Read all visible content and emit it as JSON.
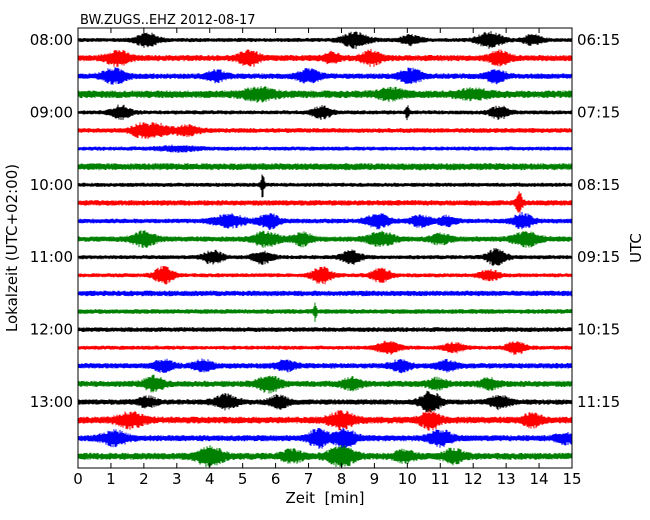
{
  "chart_data": {
    "type": "line",
    "title": "BW.ZUGS..EHZ 2012-08-17",
    "xlabel": "Zeit  [min]",
    "ylabel_left": "Lokalzeit (UTC+02:00)",
    "ylabel_right": "UTC",
    "xlim": [
      0,
      15
    ],
    "x_ticks": [
      "0",
      "1",
      "2",
      "3",
      "4",
      "5",
      "6",
      "7",
      "8",
      "9",
      "10",
      "11",
      "12",
      "13",
      "14",
      "15"
    ],
    "left_ticks": [
      "08:00",
      "09:00",
      "10:00",
      "11:00",
      "12:00",
      "13:00"
    ],
    "right_ticks": [
      "06:15",
      "07:15",
      "08:15",
      "09:15",
      "10:15",
      "11:15"
    ],
    "trace_colors": [
      "#000000",
      "#ff0000",
      "#0000ff",
      "#008000"
    ],
    "traces": [
      {
        "base": 0.3,
        "events": [
          [
            2.1,
            0.9,
            0.35
          ],
          [
            8.4,
            1.0,
            0.4
          ],
          [
            10.1,
            0.6,
            0.3
          ],
          [
            12.5,
            1.0,
            0.4
          ],
          [
            13.8,
            0.6,
            0.3
          ]
        ]
      },
      {
        "base": 0.45,
        "events": [
          [
            1.2,
            0.9,
            0.35
          ],
          [
            5.2,
            1.0,
            0.3
          ],
          [
            7.7,
            0.6,
            0.25
          ],
          [
            8.9,
            0.9,
            0.3
          ],
          [
            12.8,
            0.9,
            0.3
          ]
        ]
      },
      {
        "base": 0.4,
        "events": [
          [
            1.1,
            0.9,
            0.4
          ],
          [
            4.2,
            0.7,
            0.3
          ],
          [
            7.0,
            0.8,
            0.35
          ],
          [
            10.1,
            0.9,
            0.35
          ],
          [
            12.7,
            0.8,
            0.3
          ]
        ]
      },
      {
        "base": 0.55,
        "events": [
          [
            5.5,
            0.7,
            0.5
          ],
          [
            9.5,
            0.6,
            0.4
          ],
          [
            12.0,
            0.5,
            0.5
          ]
        ]
      },
      {
        "base": 0.3,
        "events": [
          [
            1.3,
            0.9,
            0.3
          ],
          [
            7.4,
            0.8,
            0.3
          ],
          [
            10.0,
            1.0,
            0.05
          ],
          [
            12.8,
            0.8,
            0.3
          ]
        ]
      },
      {
        "base": 0.35,
        "events": [
          [
            1.9,
            0.8,
            0.3
          ],
          [
            2.4,
            0.8,
            0.35
          ],
          [
            3.3,
            0.6,
            0.4
          ]
        ]
      },
      {
        "base": 0.3,
        "events": [
          [
            3.0,
            0.3,
            0.6
          ]
        ]
      },
      {
        "base": 0.5,
        "events": []
      },
      {
        "base": 0.3,
        "events": [
          [
            5.6,
            1.9,
            0.05
          ]
        ]
      },
      {
        "base": 0.4,
        "events": [
          [
            13.4,
            1.3,
            0.1
          ]
        ]
      },
      {
        "base": 0.35,
        "events": [
          [
            4.6,
            0.8,
            0.5
          ],
          [
            5.8,
            1.0,
            0.3
          ],
          [
            9.1,
            0.9,
            0.35
          ],
          [
            10.4,
            0.7,
            0.3
          ],
          [
            11.2,
            0.6,
            0.3
          ],
          [
            13.5,
            1.0,
            0.3
          ]
        ]
      },
      {
        "base": 0.4,
        "events": [
          [
            2.0,
            1.0,
            0.35
          ],
          [
            5.7,
            0.9,
            0.4
          ],
          [
            6.8,
            0.8,
            0.3
          ],
          [
            9.2,
            0.9,
            0.4
          ],
          [
            11.0,
            0.6,
            0.3
          ],
          [
            13.6,
            0.9,
            0.4
          ]
        ]
      },
      {
        "base": 0.3,
        "events": [
          [
            4.1,
            0.9,
            0.3
          ],
          [
            5.6,
            0.8,
            0.3
          ],
          [
            8.3,
            0.9,
            0.3
          ],
          [
            12.7,
            1.1,
            0.3
          ]
        ]
      },
      {
        "base": 0.3,
        "events": [
          [
            2.6,
            1.1,
            0.3
          ],
          [
            7.4,
            1.1,
            0.3
          ],
          [
            9.2,
            0.9,
            0.3
          ],
          [
            12.5,
            0.7,
            0.3
          ]
        ]
      },
      {
        "base": 0.4,
        "events": []
      },
      {
        "base": 0.35,
        "events": [
          [
            7.2,
            1.2,
            0.05
          ]
        ]
      },
      {
        "base": 0.35,
        "events": []
      },
      {
        "base": 0.3,
        "events": [
          [
            9.4,
            0.8,
            0.35
          ],
          [
            11.4,
            0.6,
            0.3
          ],
          [
            13.3,
            0.8,
            0.3
          ]
        ]
      },
      {
        "base": 0.4,
        "events": [
          [
            2.6,
            0.7,
            0.3
          ],
          [
            3.8,
            0.7,
            0.3
          ],
          [
            6.3,
            0.6,
            0.3
          ],
          [
            9.8,
            0.7,
            0.3
          ],
          [
            11.2,
            0.6,
            0.3
          ]
        ]
      },
      {
        "base": 0.45,
        "events": [
          [
            2.3,
            0.9,
            0.3
          ],
          [
            5.8,
            1.0,
            0.35
          ],
          [
            8.3,
            0.7,
            0.3
          ],
          [
            10.9,
            0.6,
            0.3
          ],
          [
            12.5,
            0.6,
            0.3
          ]
        ]
      },
      {
        "base": 0.4,
        "events": [
          [
            2.1,
            0.6,
            0.3
          ],
          [
            4.5,
            0.9,
            0.35
          ],
          [
            6.1,
            0.8,
            0.3
          ],
          [
            10.7,
            1.4,
            0.3
          ],
          [
            12.8,
            0.8,
            0.3
          ]
        ]
      },
      {
        "base": 0.5,
        "events": [
          [
            1.6,
            0.9,
            0.4
          ],
          [
            8.0,
            1.0,
            0.4
          ],
          [
            10.7,
            1.1,
            0.3
          ],
          [
            13.8,
            0.8,
            0.3
          ]
        ]
      },
      {
        "base": 0.45,
        "events": [
          [
            1.1,
            0.9,
            0.4
          ],
          [
            7.3,
            1.2,
            0.3
          ],
          [
            8.1,
            1.1,
            0.35
          ],
          [
            11.0,
            1.0,
            0.35
          ],
          [
            14.8,
            0.6,
            0.3
          ]
        ]
      },
      {
        "base": 0.5,
        "events": [
          [
            4.0,
            1.2,
            0.4
          ],
          [
            6.5,
            0.8,
            0.3
          ],
          [
            8.0,
            1.3,
            0.4
          ],
          [
            9.9,
            0.7,
            0.3
          ],
          [
            11.4,
            0.9,
            0.3
          ]
        ]
      }
    ]
  }
}
